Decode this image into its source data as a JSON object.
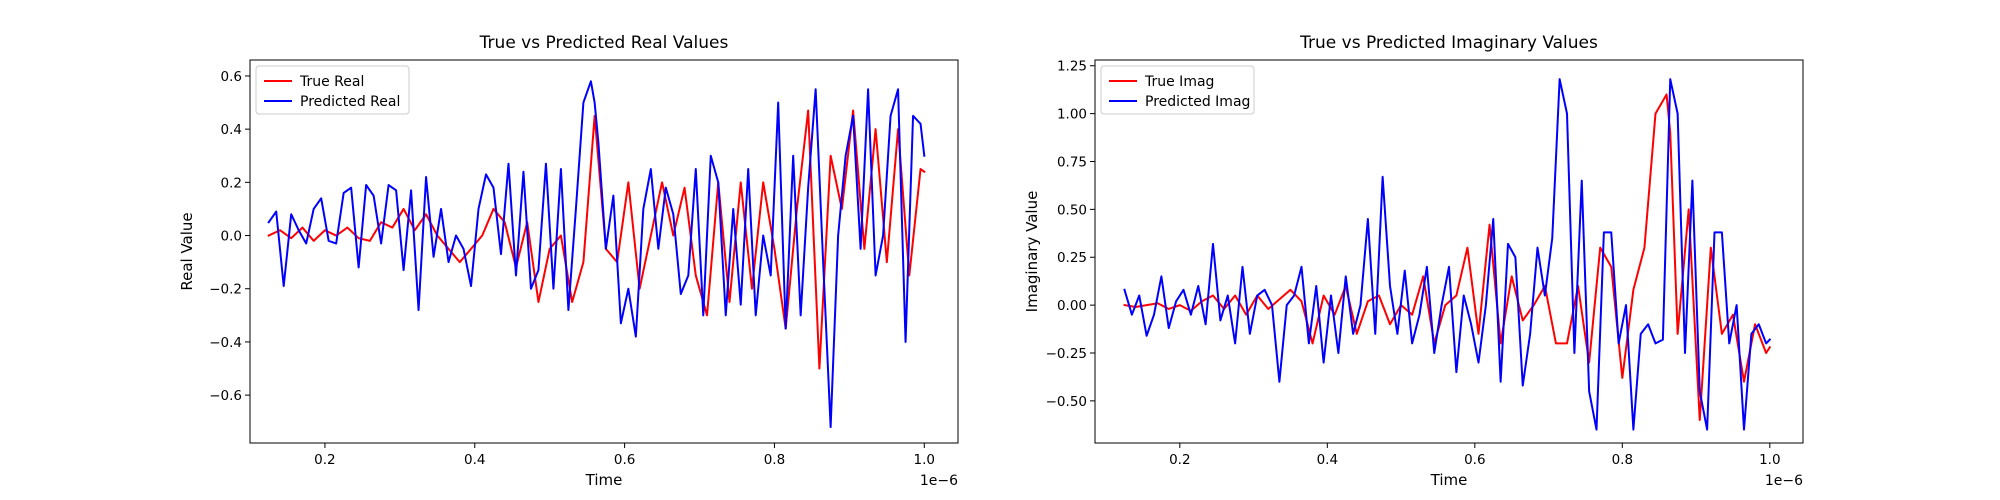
{
  "chart_data": [
    {
      "type": "line",
      "title": "True vs Predicted Real Values",
      "xlabel": "Time",
      "ylabel": "Real Value",
      "x_offset_text": "1e−6",
      "xlim": [
        0.1,
        1.045
      ],
      "ylim": [
        -0.78,
        0.66
      ],
      "xticks": [
        0.2,
        0.4,
        0.6,
        0.8,
        1.0
      ],
      "xtick_labels": [
        "0.2",
        "0.4",
        "0.6",
        "0.8",
        "1.0"
      ],
      "yticks": [
        -0.6,
        -0.4,
        -0.2,
        0.0,
        0.2,
        0.4,
        0.6
      ],
      "ytick_labels": [
        "−0.6",
        "−0.4",
        "−0.2",
        "0.0",
        "0.2",
        "0.4",
        "0.6"
      ],
      "grid": false,
      "legend_position": "top-left",
      "series": [
        {
          "name": "True Real",
          "color": "#ff0000",
          "x": [
            0.125,
            0.14,
            0.155,
            0.17,
            0.185,
            0.2,
            0.215,
            0.23,
            0.245,
            0.26,
            0.275,
            0.29,
            0.305,
            0.32,
            0.335,
            0.35,
            0.365,
            0.38,
            0.395,
            0.41,
            0.425,
            0.44,
            0.455,
            0.47,
            0.485,
            0.5,
            0.515,
            0.53,
            0.545,
            0.56,
            0.575,
            0.59,
            0.605,
            0.62,
            0.635,
            0.65,
            0.665,
            0.68,
            0.695,
            0.71,
            0.725,
            0.74,
            0.755,
            0.77,
            0.785,
            0.8,
            0.815,
            0.83,
            0.845,
            0.86,
            0.875,
            0.89,
            0.905,
            0.92,
            0.935,
            0.95,
            0.965,
            0.98,
            0.995,
            1.0
          ],
          "y": [
            0.0,
            0.02,
            -0.01,
            0.03,
            -0.02,
            0.02,
            0.0,
            0.03,
            -0.01,
            -0.02,
            0.05,
            0.03,
            0.1,
            0.02,
            0.08,
            0.0,
            -0.05,
            -0.1,
            -0.05,
            0.0,
            0.1,
            0.05,
            -0.12,
            0.05,
            -0.25,
            -0.05,
            0.0,
            -0.25,
            -0.1,
            0.45,
            -0.05,
            -0.1,
            0.2,
            -0.2,
            0.0,
            0.2,
            0.0,
            0.18,
            -0.15,
            -0.3,
            0.2,
            -0.25,
            0.2,
            -0.2,
            0.2,
            -0.05,
            -0.35,
            0.1,
            0.47,
            -0.5,
            0.3,
            0.1,
            0.47,
            -0.05,
            0.4,
            -0.1,
            0.4,
            -0.15,
            0.25,
            0.24
          ]
        },
        {
          "name": "Predicted Real",
          "color": "#0000ff",
          "x": [
            0.125,
            0.135,
            0.145,
            0.155,
            0.165,
            0.175,
            0.185,
            0.195,
            0.205,
            0.215,
            0.225,
            0.235,
            0.245,
            0.255,
            0.265,
            0.275,
            0.285,
            0.295,
            0.305,
            0.315,
            0.325,
            0.335,
            0.345,
            0.355,
            0.365,
            0.375,
            0.385,
            0.395,
            0.405,
            0.415,
            0.425,
            0.435,
            0.445,
            0.455,
            0.465,
            0.475,
            0.485,
            0.495,
            0.505,
            0.515,
            0.525,
            0.535,
            0.545,
            0.555,
            0.56,
            0.565,
            0.575,
            0.585,
            0.595,
            0.605,
            0.615,
            0.625,
            0.635,
            0.645,
            0.655,
            0.665,
            0.675,
            0.685,
            0.695,
            0.705,
            0.715,
            0.725,
            0.735,
            0.745,
            0.755,
            0.765,
            0.775,
            0.785,
            0.795,
            0.805,
            0.815,
            0.825,
            0.835,
            0.845,
            0.855,
            0.865,
            0.875,
            0.885,
            0.895,
            0.905,
            0.915,
            0.925,
            0.935,
            0.945,
            0.955,
            0.965,
            0.975,
            0.985,
            0.995,
            1.0
          ],
          "y": [
            0.05,
            0.09,
            -0.19,
            0.08,
            0.02,
            -0.03,
            0.1,
            0.14,
            -0.02,
            -0.03,
            0.16,
            0.18,
            -0.12,
            0.19,
            0.15,
            -0.03,
            0.19,
            0.17,
            -0.13,
            0.17,
            -0.28,
            0.22,
            -0.08,
            0.1,
            -0.1,
            0.0,
            -0.05,
            -0.19,
            0.1,
            0.23,
            0.18,
            -0.07,
            0.27,
            -0.15,
            0.24,
            -0.2,
            -0.13,
            0.27,
            -0.2,
            0.25,
            -0.28,
            0.1,
            0.5,
            0.58,
            0.5,
            0.35,
            -0.05,
            0.15,
            -0.33,
            -0.2,
            -0.38,
            0.1,
            0.25,
            -0.05,
            0.18,
            0.08,
            -0.22,
            -0.15,
            0.25,
            -0.3,
            0.3,
            0.2,
            -0.3,
            0.1,
            -0.26,
            0.25,
            -0.3,
            0.0,
            -0.15,
            0.5,
            -0.35,
            0.3,
            -0.3,
            0.18,
            0.55,
            -0.1,
            -0.72,
            0.0,
            0.3,
            0.45,
            -0.05,
            0.55,
            -0.15,
            0.0,
            0.45,
            0.55,
            -0.4,
            0.45,
            0.42,
            0.3
          ]
        }
      ]
    },
    {
      "type": "line",
      "title": "True vs Predicted Imaginary Values",
      "xlabel": "Time",
      "ylabel": "Imaginary Value",
      "x_offset_text": "1e−6",
      "xlim": [
        0.085,
        1.045
      ],
      "ylim": [
        -0.72,
        1.28
      ],
      "xticks": [
        0.2,
        0.4,
        0.6,
        0.8,
        1.0
      ],
      "xtick_labels": [
        "0.2",
        "0.4",
        "0.6",
        "0.8",
        "1.0"
      ],
      "yticks": [
        -0.5,
        -0.25,
        0.0,
        0.25,
        0.5,
        0.75,
        1.0,
        1.25
      ],
      "ytick_labels": [
        "−0.50",
        "−0.25",
        "0.00",
        "0.25",
        "0.50",
        "0.75",
        "1.00",
        "1.25"
      ],
      "grid": false,
      "legend_position": "top-left",
      "series": [
        {
          "name": "True Imag",
          "color": "#ff0000",
          "x": [
            0.125,
            0.14,
            0.155,
            0.17,
            0.185,
            0.2,
            0.215,
            0.23,
            0.245,
            0.26,
            0.275,
            0.29,
            0.305,
            0.32,
            0.335,
            0.35,
            0.365,
            0.38,
            0.395,
            0.41,
            0.425,
            0.44,
            0.455,
            0.47,
            0.485,
            0.5,
            0.515,
            0.53,
            0.545,
            0.56,
            0.575,
            0.59,
            0.605,
            0.62,
            0.635,
            0.65,
            0.665,
            0.68,
            0.695,
            0.71,
            0.725,
            0.74,
            0.755,
            0.77,
            0.785,
            0.8,
            0.815,
            0.83,
            0.845,
            0.86,
            0.865,
            0.875,
            0.89,
            0.905,
            0.92,
            0.935,
            0.95,
            0.965,
            0.98,
            0.995,
            1.0
          ],
          "y": [
            0.0,
            -0.01,
            0.0,
            0.01,
            -0.02,
            0.0,
            -0.03,
            0.02,
            0.05,
            -0.02,
            0.05,
            -0.05,
            0.05,
            -0.02,
            0.03,
            0.08,
            0.02,
            -0.2,
            0.05,
            -0.05,
            0.1,
            -0.15,
            0.02,
            0.05,
            -0.1,
            0.0,
            -0.05,
            0.15,
            -0.2,
            0.0,
            0.05,
            0.3,
            -0.15,
            0.42,
            -0.2,
            0.15,
            -0.08,
            0.0,
            0.1,
            -0.2,
            -0.2,
            0.1,
            -0.3,
            0.3,
            0.2,
            -0.38,
            0.08,
            0.3,
            1.0,
            1.1,
            0.9,
            -0.15,
            0.5,
            -0.6,
            0.3,
            -0.15,
            -0.05,
            -0.4,
            -0.1,
            -0.25,
            -0.22
          ]
        },
        {
          "name": "Predicted Imag",
          "color": "#0000ff",
          "x": [
            0.125,
            0.135,
            0.145,
            0.155,
            0.165,
            0.175,
            0.185,
            0.195,
            0.205,
            0.215,
            0.225,
            0.235,
            0.245,
            0.255,
            0.265,
            0.275,
            0.285,
            0.295,
            0.305,
            0.315,
            0.325,
            0.335,
            0.345,
            0.355,
            0.365,
            0.375,
            0.385,
            0.395,
            0.405,
            0.415,
            0.425,
            0.435,
            0.445,
            0.455,
            0.465,
            0.475,
            0.485,
            0.495,
            0.505,
            0.515,
            0.525,
            0.535,
            0.545,
            0.555,
            0.565,
            0.575,
            0.585,
            0.595,
            0.605,
            0.615,
            0.625,
            0.635,
            0.645,
            0.655,
            0.665,
            0.675,
            0.685,
            0.695,
            0.705,
            0.715,
            0.725,
            0.735,
            0.745,
            0.755,
            0.765,
            0.775,
            0.785,
            0.795,
            0.805,
            0.815,
            0.825,
            0.835,
            0.845,
            0.855,
            0.865,
            0.875,
            0.885,
            0.895,
            0.905,
            0.915,
            0.925,
            0.935,
            0.945,
            0.955,
            0.965,
            0.975,
            0.985,
            0.995,
            1.0
          ],
          "y": [
            0.08,
            -0.05,
            0.05,
            -0.16,
            -0.05,
            0.15,
            -0.12,
            0.02,
            0.08,
            -0.05,
            0.1,
            -0.1,
            0.32,
            -0.08,
            0.05,
            -0.2,
            0.2,
            -0.15,
            0.05,
            0.08,
            0.0,
            -0.4,
            0.0,
            0.05,
            0.2,
            -0.2,
            0.1,
            -0.3,
            0.05,
            -0.25,
            0.15,
            -0.15,
            0.0,
            0.45,
            -0.15,
            0.67,
            0.1,
            -0.15,
            0.18,
            -0.2,
            -0.05,
            0.2,
            -0.25,
            0.0,
            0.2,
            -0.35,
            0.05,
            -0.1,
            -0.3,
            0.0,
            0.45,
            -0.4,
            0.32,
            0.25,
            -0.42,
            -0.15,
            0.3,
            0.05,
            0.35,
            1.18,
            1.0,
            -0.25,
            0.65,
            -0.45,
            -0.65,
            0.38,
            0.38,
            -0.2,
            0.0,
            -0.65,
            -0.15,
            -0.1,
            -0.2,
            -0.18,
            1.18,
            1.0,
            -0.25,
            0.65,
            -0.45,
            -0.65,
            0.38,
            0.38,
            -0.2,
            0.0,
            -0.65,
            -0.15,
            -0.1,
            -0.2,
            -0.18
          ]
        }
      ]
    }
  ]
}
